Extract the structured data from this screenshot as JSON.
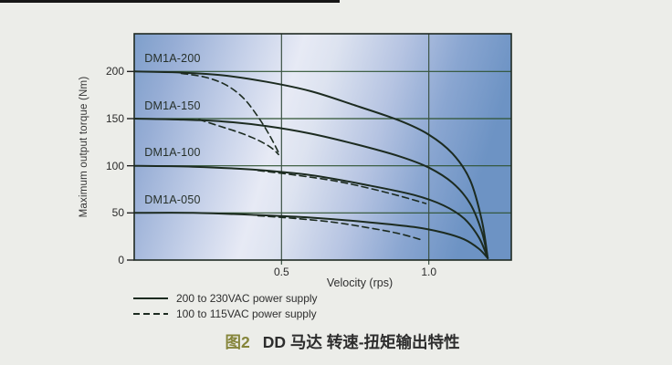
{
  "page": {
    "background": "#ecede9"
  },
  "caption": {
    "number": "图2",
    "number_color": "#85853a",
    "title": "DD 马达  转速-扭矩输出特性"
  },
  "chart_data": {
    "type": "line",
    "title": "",
    "xlabel": "Velocity (rps)",
    "ylabel": "Maximum output torque (Nm)",
    "xlim": [
      0,
      1.28
    ],
    "ylim": [
      0,
      240
    ],
    "grid": true,
    "legend_position": "bottom-left",
    "xticks": [
      {
        "v": 0.5,
        "label": "0.5"
      },
      {
        "v": 1.0,
        "label": "1.0"
      }
    ],
    "yticks": [
      {
        "t": 0,
        "label": "0"
      },
      {
        "t": 50,
        "label": "50"
      },
      {
        "t": 100,
        "label": "100"
      },
      {
        "t": 150,
        "label": "150"
      },
      {
        "t": 200,
        "label": "200"
      }
    ],
    "curve_labels": [
      {
        "text": "DM1A-200",
        "v": 0.035,
        "t": 214
      },
      {
        "text": "DM1A-150",
        "v": 0.035,
        "t": 164
      },
      {
        "text": "DM1A-100",
        "v": 0.035,
        "t": 114
      },
      {
        "text": "DM1A-050",
        "v": 0.035,
        "t": 64
      }
    ],
    "legend": [
      {
        "label": "200 to 230VAC power supply",
        "style": "solid"
      },
      {
        "label": "100 to 115VAC power supply",
        "style": "dashed"
      }
    ],
    "series": [
      {
        "name": "DM1A-200 (200-230VAC)",
        "style": "solid",
        "points": [
          [
            0,
            200
          ],
          [
            0.15,
            199
          ],
          [
            0.3,
            196
          ],
          [
            0.45,
            189
          ],
          [
            0.6,
            179
          ],
          [
            0.75,
            164
          ],
          [
            0.9,
            148
          ],
          [
            1.0,
            133
          ],
          [
            1.08,
            113
          ],
          [
            1.14,
            85
          ],
          [
            1.18,
            42
          ],
          [
            1.2,
            2
          ]
        ]
      },
      {
        "name": "DM1A-150 (200-230VAC)",
        "style": "solid",
        "points": [
          [
            0,
            150
          ],
          [
            0.15,
            149
          ],
          [
            0.3,
            147
          ],
          [
            0.45,
            142
          ],
          [
            0.6,
            134
          ],
          [
            0.75,
            123
          ],
          [
            0.9,
            110
          ],
          [
            1.0,
            98
          ],
          [
            1.08,
            82
          ],
          [
            1.14,
            60
          ],
          [
            1.18,
            30
          ],
          [
            1.2,
            2
          ]
        ]
      },
      {
        "name": "DM1A-100 (200-230VAC)",
        "style": "solid",
        "points": [
          [
            0,
            100
          ],
          [
            0.2,
            99
          ],
          [
            0.4,
            96
          ],
          [
            0.6,
            90
          ],
          [
            0.8,
            79
          ],
          [
            0.95,
            69
          ],
          [
            1.05,
            58
          ],
          [
            1.12,
            44
          ],
          [
            1.17,
            24
          ],
          [
            1.2,
            2
          ]
        ]
      },
      {
        "name": "DM1A-050 (200-230VAC)",
        "style": "solid",
        "points": [
          [
            0,
            50
          ],
          [
            0.2,
            50
          ],
          [
            0.4,
            48
          ],
          [
            0.6,
            45
          ],
          [
            0.8,
            40
          ],
          [
            0.95,
            35
          ],
          [
            1.05,
            29
          ],
          [
            1.12,
            22
          ],
          [
            1.17,
            12
          ],
          [
            1.2,
            2
          ]
        ]
      },
      {
        "name": "DM1A-200 (100-115VAC)",
        "style": "dashed",
        "points": [
          [
            0.16,
            198
          ],
          [
            0.24,
            194
          ],
          [
            0.31,
            186
          ],
          [
            0.37,
            172
          ],
          [
            0.42,
            152
          ],
          [
            0.46,
            132
          ],
          [
            0.49,
            114
          ]
        ]
      },
      {
        "name": "DM1A-150 (100-115VAC)",
        "style": "dashed",
        "points": [
          [
            0.22,
            149
          ],
          [
            0.29,
            142
          ],
          [
            0.35,
            136
          ],
          [
            0.4,
            130
          ],
          [
            0.44,
            124
          ],
          [
            0.47,
            118
          ],
          [
            0.49,
            112
          ]
        ]
      },
      {
        "name": "DM1A-100 (100-115VAC)",
        "style": "dashed",
        "points": [
          [
            0.42,
            95
          ],
          [
            0.55,
            90
          ],
          [
            0.68,
            84
          ],
          [
            0.8,
            76
          ],
          [
            0.9,
            68
          ],
          [
            0.99,
            60
          ]
        ]
      },
      {
        "name": "DM1A-050 (100-115VAC)",
        "style": "dashed",
        "points": [
          [
            0.42,
            47
          ],
          [
            0.55,
            44
          ],
          [
            0.68,
            40
          ],
          [
            0.8,
            34
          ],
          [
            0.9,
            28
          ],
          [
            0.98,
            21
          ]
        ]
      }
    ],
    "colors": {
      "curve": "#1c2b20",
      "grid_h": "#2e5230",
      "grid_v": "#3c5244",
      "border": "#1f2a22",
      "plot_bg_stops": [
        "#7e9fcb",
        "#96add5",
        "#c6d1e9",
        "#e7eaf5",
        "#dde3f0",
        "#b6c4e2",
        "#8aa6d1",
        "#6d93c4"
      ]
    }
  }
}
